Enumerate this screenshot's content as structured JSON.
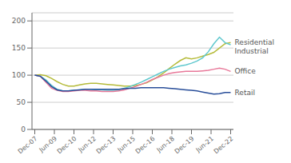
{
  "chart_data": {
    "type": "line",
    "x": [
      0,
      1,
      2,
      3,
      4,
      5,
      6,
      7,
      8,
      9,
      10,
      11,
      12,
      13,
      14,
      15,
      16,
      17,
      18,
      19,
      20,
      21,
      22,
      23,
      24,
      25,
      26,
      27,
      28,
      29,
      30,
      31,
      32,
      33,
      34,
      35
    ],
    "xlim": [
      -0.5,
      35.5
    ],
    "xticks": [
      {
        "value": 0,
        "label": "Dec-07"
      },
      {
        "value": 3.5,
        "label": "Jun-09"
      },
      {
        "value": 7,
        "label": "Dec-10"
      },
      {
        "value": 10.5,
        "label": "Jun-12"
      },
      {
        "value": 14,
        "label": "Dec-13"
      },
      {
        "value": 17.5,
        "label": "Jun-15"
      },
      {
        "value": 21,
        "label": "Dec-16"
      },
      {
        "value": 24.5,
        "label": "Jun-18"
      },
      {
        "value": 28,
        "label": "Dec-19"
      },
      {
        "value": 31.5,
        "label": "Jun-21"
      },
      {
        "value": 35,
        "label": "Dec-22"
      }
    ],
    "ylim": [
      0,
      215
    ],
    "yticks": [
      0,
      50,
      100,
      150,
      200
    ],
    "grid": true,
    "series": [
      {
        "name": "Residential",
        "color": "#b5bb3a",
        "values": [
          100,
          101,
          99,
          94,
          88,
          83,
          80,
          80,
          82,
          84,
          85,
          85,
          84,
          83,
          82,
          81,
          80,
          80,
          81,
          83,
          86,
          91,
          97,
          104,
          112,
          120,
          127,
          132,
          130,
          132,
          135,
          138,
          142,
          150,
          158,
          160
        ]
      },
      {
        "name": "Industrial",
        "color": "#5fc8ce",
        "values": [
          100,
          98,
          91,
          81,
          74,
          71,
          71,
          72,
          73,
          74,
          74,
          73,
          73,
          72,
          72,
          73,
          76,
          79,
          83,
          87,
          92,
          97,
          102,
          107,
          111,
          114,
          117,
          119,
          122,
          126,
          132,
          143,
          158,
          170,
          160,
          156
        ]
      },
      {
        "name": "Office",
        "color": "#e8799a",
        "values": [
          100,
          98,
          87,
          76,
          72,
          70,
          70,
          71,
          72,
          72,
          71,
          71,
          70,
          70,
          70,
          71,
          73,
          76,
          79,
          83,
          87,
          92,
          96,
          100,
          103,
          105,
          106,
          107,
          107,
          107,
          108,
          109,
          111,
          113,
          111,
          107
        ]
      },
      {
        "name": "Retail",
        "color": "#2a4f9a",
        "values": [
          100,
          98,
          89,
          79,
          73,
          71,
          71,
          72,
          73,
          74,
          74,
          74,
          74,
          74,
          74,
          74,
          75,
          76,
          76,
          77,
          77,
          77,
          77,
          77,
          76,
          75,
          74,
          73,
          72,
          71,
          69,
          67,
          65,
          66,
          68,
          68
        ]
      }
    ],
    "annotations": [
      {
        "text": "Residential",
        "x": 35,
        "y": 160
      },
      {
        "text": "Industrial",
        "x": 35,
        "y": 155
      },
      {
        "text": "Office",
        "x": 35,
        "y": 107
      },
      {
        "text": "Retail",
        "x": 35,
        "y": 68
      }
    ]
  }
}
